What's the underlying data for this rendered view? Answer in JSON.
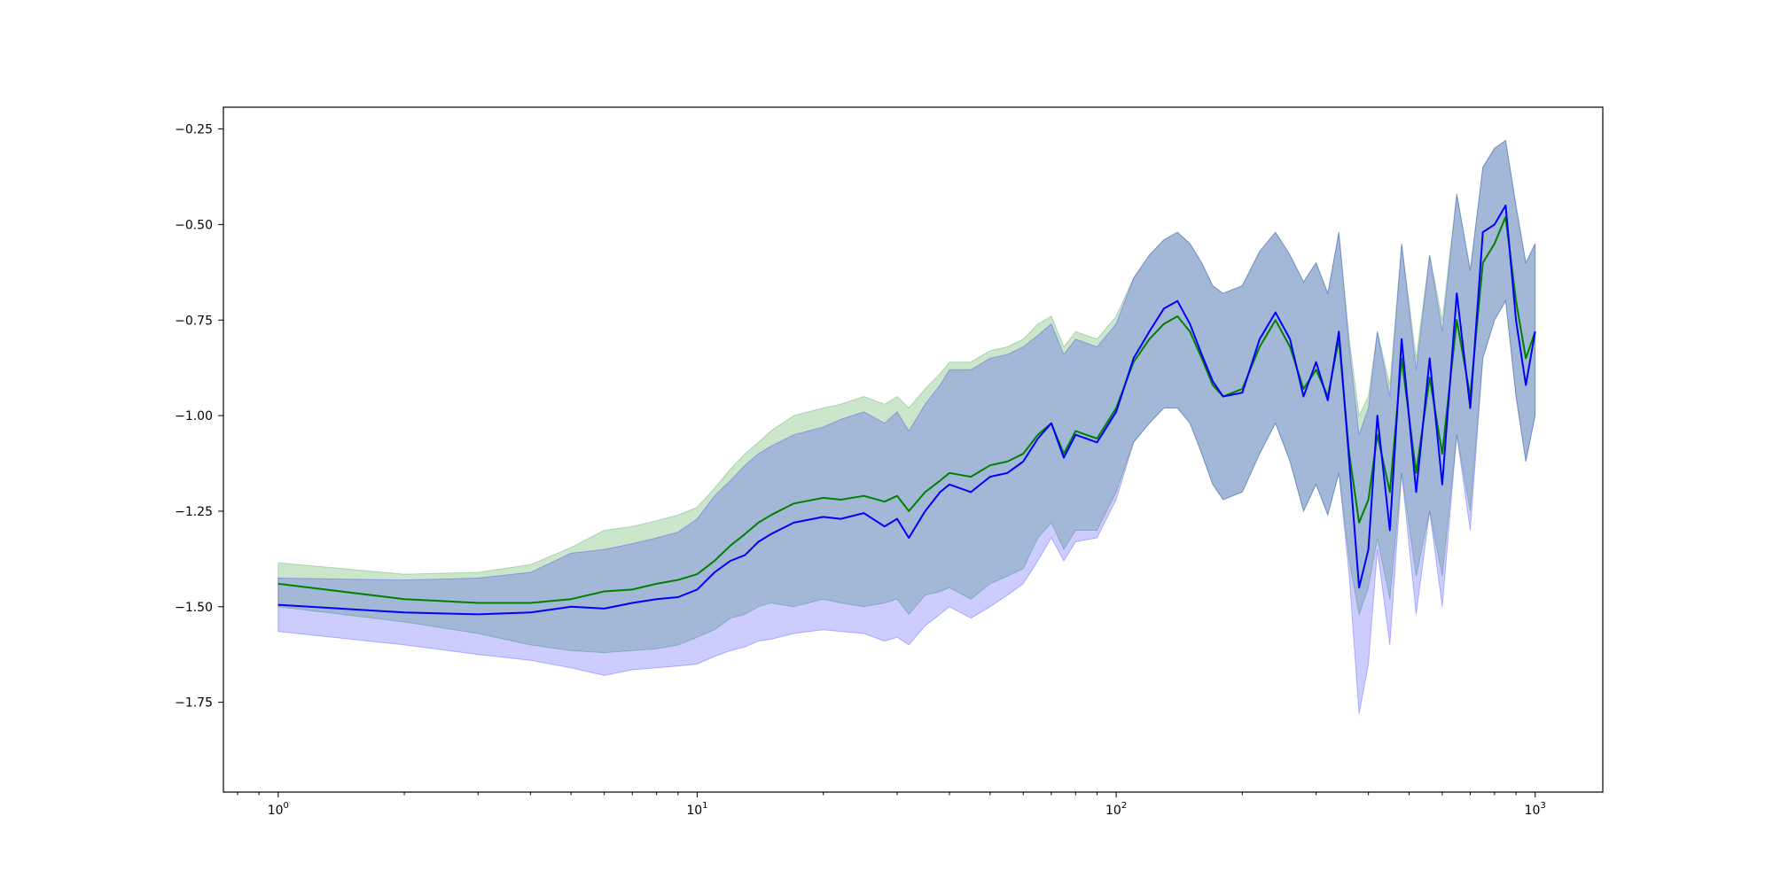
{
  "chart_data": {
    "type": "line",
    "title": "",
    "xlabel": "",
    "ylabel": "",
    "xscale": "log",
    "xlim": [
      0.74,
      1450
    ],
    "ylim": [
      -1.985,
      -0.193
    ],
    "grid": false,
    "legend": "none",
    "x_ticks": [
      {
        "value": 1,
        "base": "10",
        "exp": "0"
      },
      {
        "value": 10,
        "base": "10",
        "exp": "1"
      },
      {
        "value": 100,
        "base": "10",
        "exp": "2"
      },
      {
        "value": 1000,
        "base": "10",
        "exp": "3"
      }
    ],
    "y_ticks": [
      {
        "value": -0.25,
        "label": "−0.25"
      },
      {
        "value": -0.5,
        "label": "−0.50"
      },
      {
        "value": -0.75,
        "label": "−0.75"
      },
      {
        "value": -1.0,
        "label": "−1.00"
      },
      {
        "value": -1.25,
        "label": "−1.25"
      },
      {
        "value": -1.5,
        "label": "−1.50"
      },
      {
        "value": -1.75,
        "label": "−1.75"
      }
    ],
    "series": [
      {
        "color": "#008000",
        "band_color": "#008000",
        "band_alpha": 0.2,
        "x": [
          1,
          2,
          3,
          4,
          5,
          6,
          7,
          8,
          9,
          10,
          11,
          12,
          13,
          14,
          15,
          17,
          20,
          22,
          25,
          28,
          30,
          32,
          35,
          38,
          40,
          45,
          50,
          55,
          60,
          65,
          70,
          75,
          80,
          90,
          100,
          110,
          120,
          130,
          140,
          150,
          160,
          170,
          180,
          200,
          220,
          240,
          260,
          280,
          300,
          320,
          340,
          360,
          380,
          400,
          420,
          450,
          480,
          520,
          560,
          600,
          650,
          700,
          750,
          800,
          850,
          900,
          950,
          1000
        ],
        "y": [
          -1.44,
          -1.48,
          -1.49,
          -1.49,
          -1.48,
          -1.46,
          -1.455,
          -1.44,
          -1.43,
          -1.415,
          -1.38,
          -1.34,
          -1.31,
          -1.28,
          -1.26,
          -1.23,
          -1.215,
          -1.22,
          -1.21,
          -1.225,
          -1.21,
          -1.25,
          -1.2,
          -1.17,
          -1.15,
          -1.16,
          -1.13,
          -1.12,
          -1.1,
          -1.05,
          -1.02,
          -1.1,
          -1.04,
          -1.06,
          -0.98,
          -0.86,
          -0.8,
          -0.76,
          -0.74,
          -0.78,
          -0.85,
          -0.92,
          -0.95,
          -0.93,
          -0.82,
          -0.75,
          -0.82,
          -0.93,
          -0.88,
          -0.95,
          -0.8,
          -1.1,
          -1.28,
          -1.22,
          -1.05,
          -1.2,
          -0.85,
          -1.15,
          -0.9,
          -1.1,
          -0.75,
          -0.95,
          -0.6,
          -0.55,
          -0.48,
          -0.7,
          -0.85,
          -0.78
        ],
        "lower": [
          -1.5,
          -1.54,
          -1.57,
          -1.6,
          -1.615,
          -1.62,
          -1.615,
          -1.61,
          -1.6,
          -1.58,
          -1.56,
          -1.53,
          -1.52,
          -1.5,
          -1.49,
          -1.5,
          -1.48,
          -1.49,
          -1.5,
          -1.49,
          -1.48,
          -1.52,
          -1.47,
          -1.46,
          -1.45,
          -1.48,
          -1.44,
          -1.42,
          -1.4,
          -1.32,
          -1.28,
          -1.35,
          -1.3,
          -1.3,
          -1.2,
          -1.07,
          -1.02,
          -0.98,
          -0.98,
          -1.02,
          -1.1,
          -1.18,
          -1.22,
          -1.2,
          -1.1,
          -1.02,
          -1.12,
          -1.25,
          -1.18,
          -1.26,
          -1.15,
          -1.38,
          -1.52,
          -1.45,
          -1.32,
          -1.48,
          -1.15,
          -1.42,
          -1.25,
          -1.42,
          -1.05,
          -1.25,
          -0.85,
          -0.75,
          -0.7,
          -0.95,
          -1.12,
          -1.0
        ],
        "upper": [
          -1.385,
          -1.415,
          -1.41,
          -1.39,
          -1.345,
          -1.3,
          -1.29,
          -1.275,
          -1.26,
          -1.24,
          -1.19,
          -1.14,
          -1.1,
          -1.07,
          -1.04,
          -1.0,
          -0.98,
          -0.97,
          -0.95,
          -0.97,
          -0.95,
          -0.98,
          -0.93,
          -0.89,
          -0.86,
          -0.86,
          -0.83,
          -0.82,
          -0.8,
          -0.76,
          -0.74,
          -0.82,
          -0.78,
          -0.8,
          -0.74,
          -0.64,
          -0.58,
          -0.54,
          -0.52,
          -0.55,
          -0.6,
          -0.66,
          -0.68,
          -0.66,
          -0.57,
          -0.52,
          -0.58,
          -0.65,
          -0.6,
          -0.68,
          -0.52,
          -0.8,
          -1.0,
          -0.95,
          -0.78,
          -0.92,
          -0.55,
          -0.85,
          -0.58,
          -0.75,
          -0.42,
          -0.62,
          -0.35,
          -0.3,
          -0.28,
          -0.45,
          -0.6,
          -0.55
        ]
      },
      {
        "color": "#0000ff",
        "band_color": "#0000ff",
        "band_alpha": 0.2,
        "x": [
          1,
          2,
          3,
          4,
          5,
          6,
          7,
          8,
          9,
          10,
          11,
          12,
          13,
          14,
          15,
          17,
          20,
          22,
          25,
          28,
          30,
          32,
          35,
          38,
          40,
          45,
          50,
          55,
          60,
          65,
          70,
          75,
          80,
          90,
          100,
          110,
          120,
          130,
          140,
          150,
          160,
          170,
          180,
          200,
          220,
          240,
          260,
          280,
          300,
          320,
          340,
          360,
          380,
          400,
          420,
          450,
          480,
          520,
          560,
          600,
          650,
          700,
          750,
          800,
          850,
          900,
          950,
          1000
        ],
        "y": [
          -1.495,
          -1.515,
          -1.52,
          -1.515,
          -1.5,
          -1.505,
          -1.49,
          -1.48,
          -1.475,
          -1.455,
          -1.41,
          -1.38,
          -1.365,
          -1.33,
          -1.31,
          -1.28,
          -1.265,
          -1.27,
          -1.255,
          -1.29,
          -1.27,
          -1.32,
          -1.25,
          -1.2,
          -1.18,
          -1.2,
          -1.16,
          -1.15,
          -1.12,
          -1.06,
          -1.02,
          -1.11,
          -1.05,
          -1.07,
          -0.99,
          -0.85,
          -0.78,
          -0.72,
          -0.7,
          -0.76,
          -0.84,
          -0.91,
          -0.95,
          -0.94,
          -0.8,
          -0.73,
          -0.8,
          -0.95,
          -0.86,
          -0.96,
          -0.78,
          -1.12,
          -1.45,
          -1.35,
          -1.0,
          -1.3,
          -0.8,
          -1.2,
          -0.85,
          -1.18,
          -0.68,
          -0.98,
          -0.52,
          -0.5,
          -0.45,
          -0.75,
          -0.92,
          -0.78
        ],
        "lower": [
          -1.565,
          -1.6,
          -1.625,
          -1.64,
          -1.66,
          -1.68,
          -1.665,
          -1.66,
          -1.655,
          -1.65,
          -1.63,
          -1.615,
          -1.605,
          -1.59,
          -1.585,
          -1.57,
          -1.56,
          -1.565,
          -1.57,
          -1.59,
          -1.58,
          -1.6,
          -1.55,
          -1.52,
          -1.5,
          -1.53,
          -1.5,
          -1.47,
          -1.44,
          -1.38,
          -1.32,
          -1.38,
          -1.33,
          -1.32,
          -1.22,
          -1.07,
          -1.02,
          -0.98,
          -0.98,
          -1.02,
          -1.1,
          -1.18,
          -1.22,
          -1.2,
          -1.1,
          -1.02,
          -1.12,
          -1.25,
          -1.18,
          -1.26,
          -1.15,
          -1.42,
          -1.78,
          -1.65,
          -1.35,
          -1.6,
          -1.15,
          -1.52,
          -1.25,
          -1.5,
          -1.05,
          -1.3,
          -0.85,
          -0.75,
          -0.7,
          -0.95,
          -1.12,
          -1.0
        ],
        "upper": [
          -1.425,
          -1.43,
          -1.425,
          -1.41,
          -1.36,
          -1.35,
          -1.335,
          -1.32,
          -1.305,
          -1.27,
          -1.21,
          -1.17,
          -1.13,
          -1.1,
          -1.08,
          -1.05,
          -1.03,
          -1.01,
          -0.99,
          -1.02,
          -0.99,
          -1.04,
          -0.97,
          -0.92,
          -0.88,
          -0.88,
          -0.85,
          -0.84,
          -0.82,
          -0.79,
          -0.76,
          -0.84,
          -0.8,
          -0.82,
          -0.76,
          -0.64,
          -0.58,
          -0.54,
          -0.52,
          -0.55,
          -0.6,
          -0.66,
          -0.68,
          -0.66,
          -0.57,
          -0.52,
          -0.58,
          -0.65,
          -0.6,
          -0.68,
          -0.52,
          -0.82,
          -1.05,
          -0.98,
          -0.78,
          -0.95,
          -0.55,
          -0.88,
          -0.58,
          -0.78,
          -0.42,
          -0.62,
          -0.35,
          -0.3,
          -0.28,
          -0.45,
          -0.6,
          -0.55
        ]
      }
    ]
  }
}
